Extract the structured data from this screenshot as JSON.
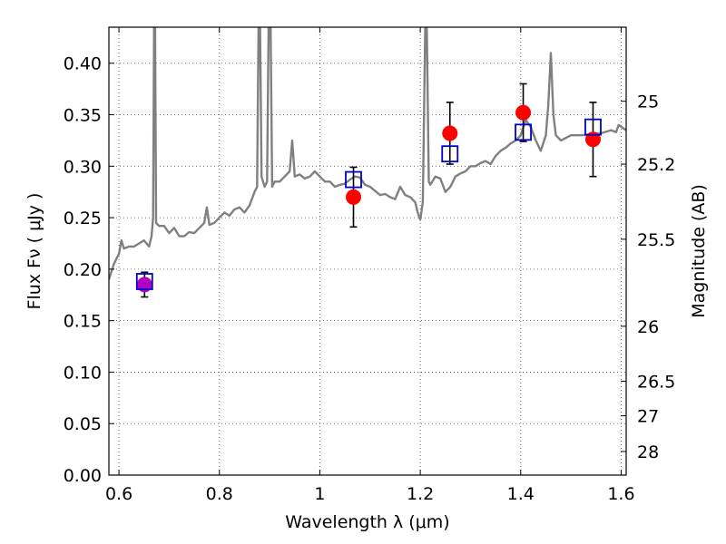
{
  "chart_data": {
    "type": "scatter",
    "xlabel": "Wavelength  λ (μm)",
    "ylabel": "Flux  Fν  ( μJy )",
    "y2label": "Magnitude (AB)",
    "xlim": [
      0.58,
      1.61
    ],
    "ylim": [
      0.0,
      0.435
    ],
    "grid": true,
    "legend": "none",
    "x_ticks": [
      0.6,
      0.8,
      1.0,
      1.2,
      1.4,
      1.6
    ],
    "x_tick_labels": [
      "0.6",
      "0.8",
      "1",
      "1.2",
      "1.4",
      "1.6"
    ],
    "y_ticks": [
      0.0,
      0.05,
      0.1,
      0.15,
      0.2,
      0.25,
      0.3,
      0.35,
      0.4
    ],
    "y_tick_labels": [
      "0.00",
      "0.05",
      "0.10",
      "0.15",
      "0.20",
      "0.25",
      "0.30",
      "0.35",
      "0.40"
    ],
    "mag_ticks": [
      25,
      25.2,
      25.5,
      26,
      26.5,
      27,
      28
    ],
    "mag_tick_labels": [
      "25",
      "25.2",
      "25.5",
      "26",
      "26.5",
      "27",
      "28"
    ],
    "colors": {
      "spectrum": "#808080",
      "observed": "#ff0000",
      "observed_first": "#b000c0",
      "model": "#0000cc",
      "errorbar": "#000000",
      "grid": "#555555"
    },
    "series": [
      {
        "kind": "line",
        "points": [
          [
            0.58,
            0.19
          ],
          [
            0.59,
            0.205
          ],
          [
            0.6,
            0.215
          ],
          [
            0.605,
            0.228
          ],
          [
            0.61,
            0.22
          ],
          [
            0.62,
            0.222
          ],
          [
            0.63,
            0.222
          ],
          [
            0.64,
            0.225
          ],
          [
            0.65,
            0.228
          ],
          [
            0.66,
            0.222
          ],
          [
            0.665,
            0.232
          ],
          [
            0.668,
            0.25
          ],
          [
            0.67,
            0.435
          ],
          [
            0.672,
            0.435
          ],
          [
            0.674,
            0.245
          ],
          [
            0.68,
            0.242
          ],
          [
            0.69,
            0.242
          ],
          [
            0.7,
            0.235
          ],
          [
            0.71,
            0.24
          ],
          [
            0.72,
            0.232
          ],
          [
            0.73,
            0.232
          ],
          [
            0.74,
            0.236
          ],
          [
            0.75,
            0.235
          ],
          [
            0.76,
            0.24
          ],
          [
            0.77,
            0.245
          ],
          [
            0.775,
            0.26
          ],
          [
            0.78,
            0.243
          ],
          [
            0.79,
            0.245
          ],
          [
            0.8,
            0.25
          ],
          [
            0.81,
            0.255
          ],
          [
            0.82,
            0.252
          ],
          [
            0.83,
            0.258
          ],
          [
            0.84,
            0.26
          ],
          [
            0.85,
            0.255
          ],
          [
            0.86,
            0.262
          ],
          [
            0.87,
            0.275
          ],
          [
            0.875,
            0.28
          ],
          [
            0.878,
            0.435
          ],
          [
            0.881,
            0.435
          ],
          [
            0.884,
            0.29
          ],
          [
            0.89,
            0.28
          ],
          [
            0.895,
            0.285
          ],
          [
            0.898,
            0.435
          ],
          [
            0.902,
            0.435
          ],
          [
            0.905,
            0.28
          ],
          [
            0.91,
            0.285
          ],
          [
            0.92,
            0.285
          ],
          [
            0.93,
            0.29
          ],
          [
            0.94,
            0.295
          ],
          [
            0.945,
            0.325
          ],
          [
            0.95,
            0.29
          ],
          [
            0.96,
            0.292
          ],
          [
            0.97,
            0.288
          ],
          [
            0.98,
            0.29
          ],
          [
            0.99,
            0.295
          ],
          [
            1.0,
            0.29
          ],
          [
            1.01,
            0.285
          ],
          [
            1.02,
            0.285
          ],
          [
            1.03,
            0.28
          ],
          [
            1.04,
            0.282
          ],
          [
            1.05,
            0.283
          ],
          [
            1.06,
            0.287
          ],
          [
            1.07,
            0.29
          ],
          [
            1.08,
            0.289
          ],
          [
            1.09,
            0.282
          ],
          [
            1.1,
            0.28
          ],
          [
            1.11,
            0.276
          ],
          [
            1.12,
            0.272
          ],
          [
            1.13,
            0.273
          ],
          [
            1.14,
            0.27
          ],
          [
            1.15,
            0.268
          ],
          [
            1.16,
            0.28
          ],
          [
            1.17,
            0.272
          ],
          [
            1.18,
            0.27
          ],
          [
            1.19,
            0.265
          ],
          [
            1.195,
            0.255
          ],
          [
            1.2,
            0.248
          ],
          [
            1.205,
            0.265
          ],
          [
            1.21,
            0.435
          ],
          [
            1.213,
            0.435
          ],
          [
            1.217,
            0.285
          ],
          [
            1.22,
            0.282
          ],
          [
            1.23,
            0.29
          ],
          [
            1.24,
            0.288
          ],
          [
            1.25,
            0.275
          ],
          [
            1.26,
            0.28
          ],
          [
            1.27,
            0.29
          ],
          [
            1.28,
            0.293
          ],
          [
            1.29,
            0.295
          ],
          [
            1.3,
            0.3
          ],
          [
            1.31,
            0.3
          ],
          [
            1.32,
            0.303
          ],
          [
            1.33,
            0.305
          ],
          [
            1.34,
            0.302
          ],
          [
            1.35,
            0.31
          ],
          [
            1.36,
            0.315
          ],
          [
            1.37,
            0.318
          ],
          [
            1.38,
            0.322
          ],
          [
            1.39,
            0.325
          ],
          [
            1.4,
            0.33
          ],
          [
            1.41,
            0.345
          ],
          [
            1.42,
            0.338
          ],
          [
            1.43,
            0.325
          ],
          [
            1.44,
            0.315
          ],
          [
            1.45,
            0.33
          ],
          [
            1.455,
            0.36
          ],
          [
            1.46,
            0.41
          ],
          [
            1.465,
            0.35
          ],
          [
            1.47,
            0.33
          ],
          [
            1.48,
            0.325
          ],
          [
            1.5,
            0.33
          ],
          [
            1.52,
            0.33
          ],
          [
            1.54,
            0.331
          ],
          [
            1.56,
            0.332
          ],
          [
            1.58,
            0.335
          ],
          [
            1.59,
            0.333
          ],
          [
            1.595,
            0.34
          ],
          [
            1.61,
            0.335
          ]
        ]
      },
      {
        "kind": "points-with-errors",
        "points": [
          {
            "x": 0.651,
            "y": 0.185,
            "err": 0.012
          },
          {
            "x": 1.067,
            "y": 0.27,
            "err": 0.029
          },
          {
            "x": 1.259,
            "y": 0.332,
            "err": 0.03
          },
          {
            "x": 1.405,
            "y": 0.352,
            "err": 0.028
          },
          {
            "x": 1.544,
            "y": 0.326,
            "err": 0.036
          }
        ]
      },
      {
        "kind": "model-squares",
        "points": [
          {
            "x": 0.651,
            "y": 0.188
          },
          {
            "x": 1.067,
            "y": 0.287
          },
          {
            "x": 1.259,
            "y": 0.312
          },
          {
            "x": 1.405,
            "y": 0.333
          },
          {
            "x": 1.544,
            "y": 0.338
          }
        ]
      }
    ]
  }
}
